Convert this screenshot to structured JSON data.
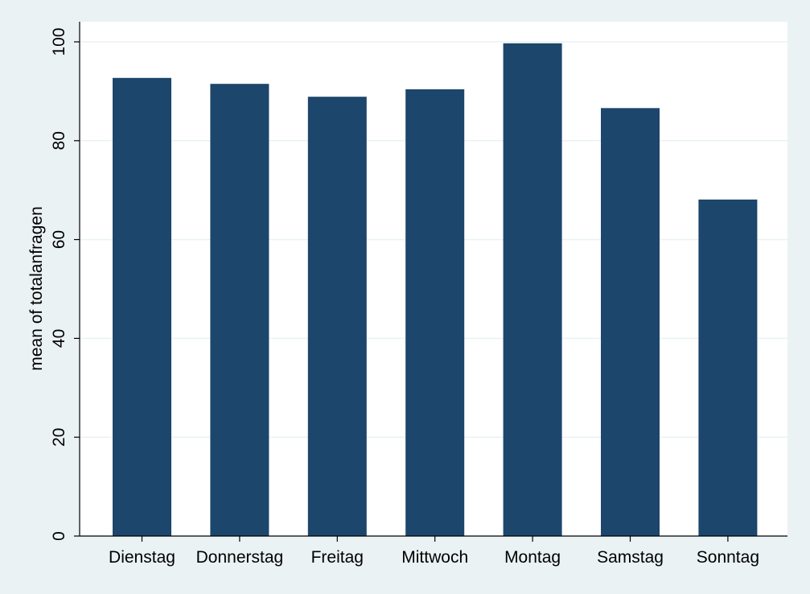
{
  "chart_data": {
    "type": "bar",
    "title": "",
    "xlabel": "",
    "ylabel": "mean of totalanfragen",
    "categories": [
      "Dienstag",
      "Donnerstag",
      "Freitag",
      "Mittwoch",
      "Montag",
      "Samstag",
      "Sonntag"
    ],
    "values": [
      92.7,
      91.5,
      88.9,
      90.4,
      99.7,
      86.6,
      68.1
    ],
    "ylim": [
      0,
      100
    ],
    "yticks": [
      0,
      20,
      40,
      60,
      80,
      100
    ],
    "grid": true,
    "legend": "none"
  },
  "colors": {
    "background": "#eaf2f3",
    "plot_background": "#ffffff",
    "bar": "#1c466c",
    "gridline": "#eaf2f3",
    "axis": "#000000"
  }
}
